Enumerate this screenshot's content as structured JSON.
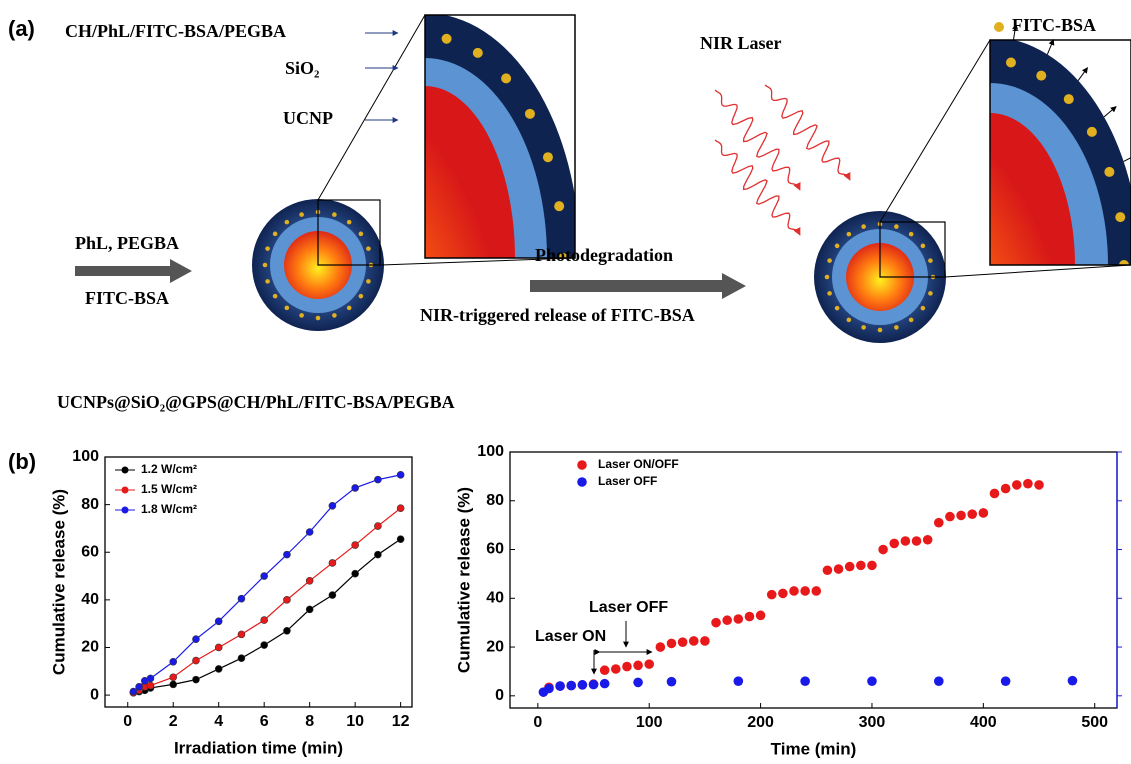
{
  "panel_a": {
    "label": "(a)",
    "shell_label": "CH/PhL/FITC-BSA/PEGBA",
    "silica_label": "SiO₂",
    "core_label": "UCNP",
    "laser_label": "NIR Laser",
    "cargo_label": "FITC-BSA",
    "reagents_top": "PhL, PEGBA",
    "reagents_bottom": "FITC-BSA",
    "step_top": "Photodegradation",
    "step_bottom": "NIR-triggered release of FITC-BSA",
    "particle_name": "UCNPs@SiO₂@GPS@CH/PhL/FITC-BSA/PEGBA"
  },
  "panel_b": {
    "label": "(b)"
  },
  "chart_data": [
    {
      "type": "line",
      "y_label": "Cumulative release (%)",
      "x_label": "Irradiation time (min)",
      "x": [
        0.25,
        0.5,
        0.75,
        1,
        2,
        3,
        4,
        5,
        6,
        7,
        8,
        9,
        10,
        11,
        12
      ],
      "series": [
        {
          "name": "1.2 W/cm²",
          "color": "#000000",
          "values": [
            1,
            1.5,
            2,
            3,
            4.5,
            6.5,
            11,
            15.5,
            21,
            27,
            36,
            42,
            51,
            59,
            65.5
          ]
        },
        {
          "name": "1.5 W/cm²",
          "color": "#e8191a",
          "values": [
            1,
            2,
            3.5,
            4,
            7.5,
            14.5,
            20,
            25.5,
            31.5,
            40,
            48,
            55.5,
            63,
            71,
            78.5
          ]
        },
        {
          "name": "1.8 W/cm²",
          "color": "#1a1ae8",
          "values": [
            1.5,
            3.5,
            6,
            7,
            14,
            23.5,
            31,
            40.5,
            50,
            59,
            68.5,
            79.5,
            87,
            90.5,
            92.5
          ]
        }
      ],
      "xlim": [
        -1,
        12.5
      ],
      "xticks": [
        0,
        2,
        4,
        6,
        8,
        10,
        12
      ],
      "ylim": [
        -5,
        100
      ],
      "yticks": [
        0,
        20,
        40,
        60,
        80,
        100
      ],
      "legend": "upper left"
    },
    {
      "type": "scatter",
      "y_label": "Cumulative release (%)",
      "x_label": "Time (min)",
      "series": [
        {
          "name": "Laser ON/OFF",
          "color": "#e8191a",
          "x": [
            10,
            20,
            30,
            40,
            50,
            60,
            70,
            80,
            90,
            100,
            110,
            120,
            130,
            140,
            150,
            160,
            170,
            180,
            190,
            200,
            210,
            220,
            230,
            240,
            250,
            260,
            270,
            280,
            290,
            300,
            310,
            320,
            330,
            340,
            350,
            360,
            370,
            380,
            390,
            400,
            410,
            420,
            430,
            440,
            450
          ],
          "values": [
            3.5,
            4,
            4.2,
            4.5,
            4.8,
            10.5,
            11,
            12,
            12.5,
            13,
            20,
            21.5,
            22,
            22.5,
            22.5,
            30,
            31,
            31.5,
            32.5,
            33,
            41.5,
            42,
            43,
            43,
            43,
            51.5,
            52,
            53,
            53.5,
            53.5,
            60,
            62.5,
            63.5,
            63.5,
            64,
            71,
            73.5,
            74,
            74.5,
            75,
            83,
            85,
            86.5,
            87,
            86.5
          ]
        },
        {
          "name": "Laser OFF",
          "color": "#1a1ae8",
          "x": [
            5,
            10,
            20,
            30,
            40,
            50,
            60,
            90,
            120,
            180,
            240,
            300,
            360,
            420,
            480
          ],
          "values": [
            1.5,
            3,
            4,
            4.2,
            4.5,
            4.6,
            5,
            5.5,
            5.8,
            6,
            6,
            6,
            6,
            6,
            6.2
          ]
        }
      ],
      "annotations": [
        "Laser ON",
        "Laser OFF"
      ],
      "xlim": [
        -25,
        520
      ],
      "xticks": [
        0,
        100,
        200,
        300,
        400,
        500
      ],
      "ylim": [
        -5,
        100
      ],
      "yticks": [
        0,
        20,
        40,
        60,
        80,
        100
      ],
      "legend": "upper left"
    }
  ]
}
